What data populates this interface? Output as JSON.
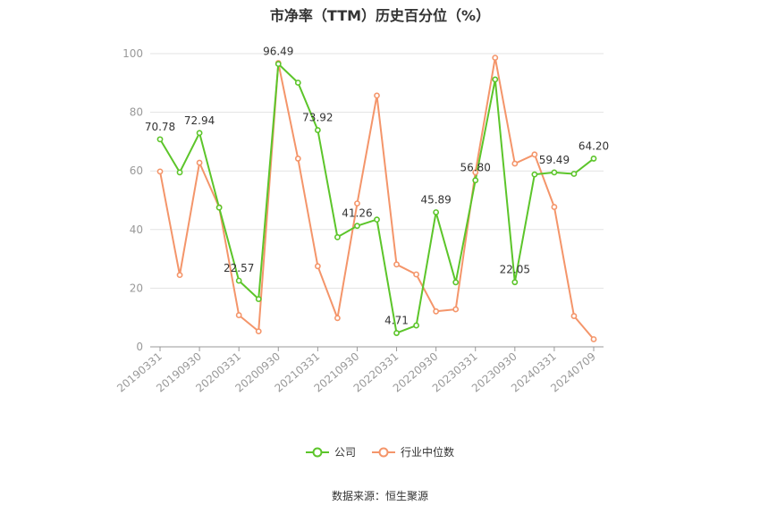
{
  "chart_data": {
    "type": "line",
    "title": "市净率（TTM）历史百分位（%）",
    "ylim": [
      0,
      100
    ],
    "yticks": [
      "0",
      "20",
      "40",
      "60",
      "80",
      "100"
    ],
    "xtick_labels": [
      "20190331",
      "20190930",
      "20200331",
      "20200930",
      "20210331",
      "20210930",
      "20220331",
      "20220930",
      "20230331",
      "20230930",
      "20240331",
      "20240709"
    ],
    "xtick_positions": [
      0,
      2,
      4,
      6,
      8,
      10,
      12,
      14,
      16,
      18,
      20,
      22
    ],
    "legend_position": "bottom-center",
    "grid": true,
    "series": [
      {
        "name": "公司",
        "color": "#5cc52a",
        "values": [
          70.78,
          59.5,
          72.94,
          47.5,
          22.57,
          16.3,
          96.49,
          90.1,
          73.92,
          37.4,
          41.26,
          43.4,
          4.71,
          7.3,
          45.89,
          22.0,
          56.8,
          91.2,
          22.05,
          58.8,
          59.49,
          59.0,
          64.2
        ],
        "data_labels": {
          "0": "70.78",
          "2": "72.94",
          "4": "22.57",
          "6": "96.49",
          "8": "73.92",
          "10": "41.26",
          "12": "4.71",
          "14": "45.89",
          "16": "56.80",
          "18": "22.05",
          "20": "59.49",
          "22": "64.20"
        }
      },
      {
        "name": "行业中位数",
        "color": "#f4956a",
        "values": [
          59.8,
          24.5,
          62.8,
          47.6,
          10.8,
          5.3,
          96.8,
          64.2,
          27.5,
          9.8,
          48.9,
          85.7,
          28.1,
          24.7,
          12.1,
          12.8,
          59.5,
          98.6,
          62.5,
          65.6,
          47.7,
          10.5,
          2.6
        ]
      }
    ]
  },
  "legend": {
    "company": "公司",
    "industry": "行业中位数"
  },
  "source": "数据来源：恒生聚源"
}
